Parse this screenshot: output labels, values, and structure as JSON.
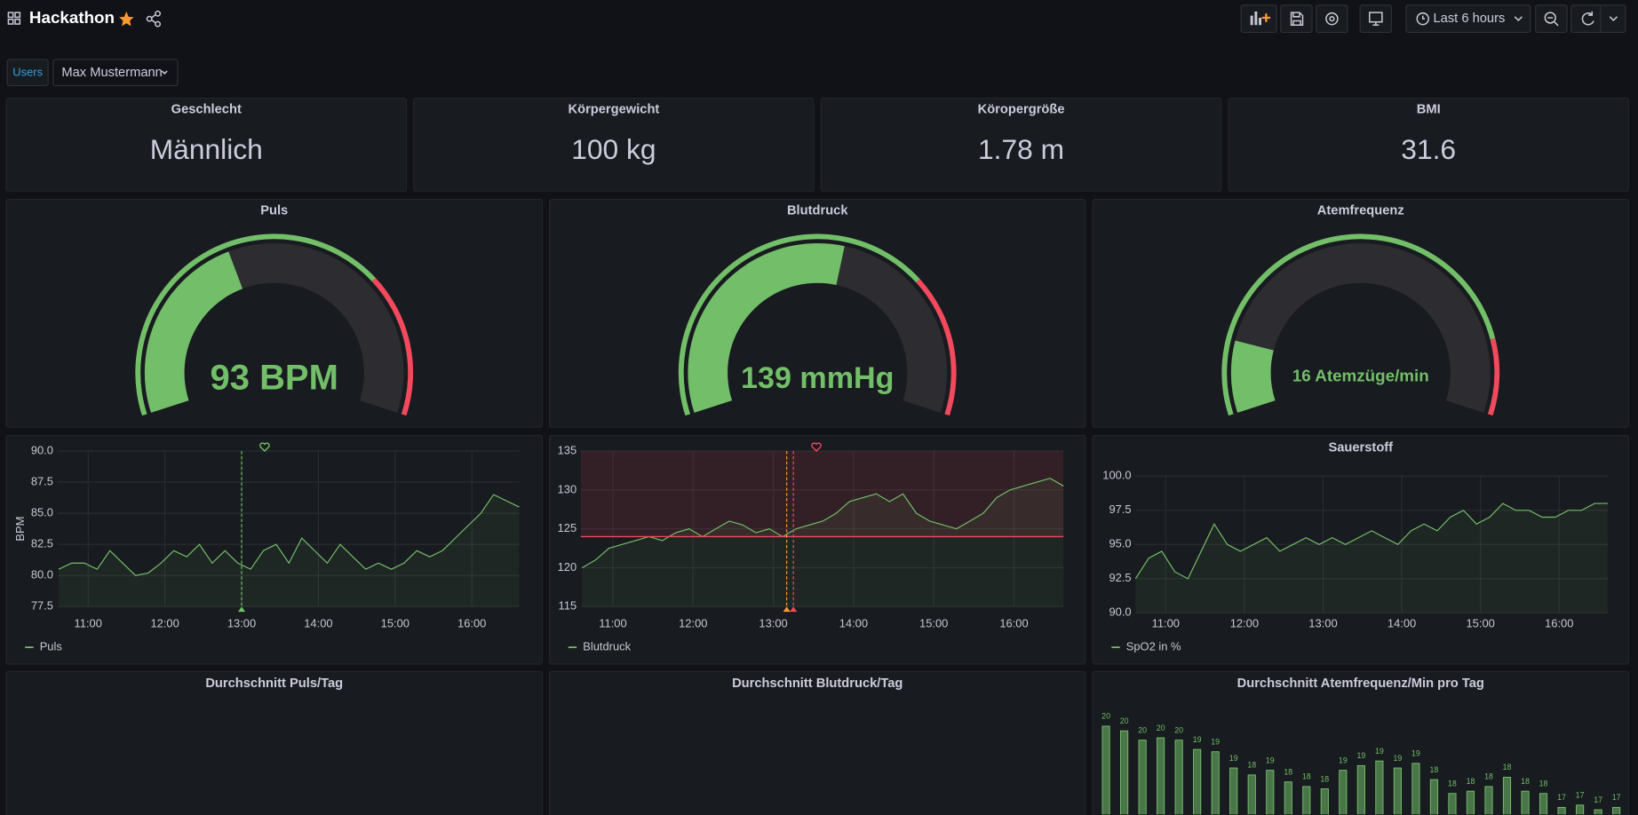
{
  "header": {
    "title": "Hackathon",
    "time_range": "Last 6 hours"
  },
  "variable": {
    "label": "Users",
    "value": "Max Mustermann"
  },
  "stats": [
    {
      "title": "Geschlecht",
      "value": "Männlich"
    },
    {
      "title": "Körpergewicht",
      "value": "100 kg"
    },
    {
      "title": "Köropergröße",
      "value": "1.78 m"
    },
    {
      "title": "BMI",
      "value": "31.6"
    }
  ],
  "gauges": [
    {
      "type": "gauge",
      "title": "Puls",
      "value": 93,
      "value_label": "93 BPM",
      "min": 0,
      "max": 230,
      "threshold": 165,
      "color": "#73bf69",
      "threshold_color": "#f2495c"
    },
    {
      "type": "gauge",
      "title": "Blutdruck",
      "value": 139,
      "value_label": "139 mmHg",
      "min": 0,
      "max": 250,
      "threshold": 180,
      "color": "#73bf69",
      "threshold_color": "#f2495c"
    },
    {
      "type": "gauge",
      "title": "Atemfrequenz",
      "value": 16,
      "value_label": "16 Atemzüge/min",
      "min": 10,
      "max": 50,
      "threshold": 44,
      "color": "#73bf69",
      "threshold_color": "#f2495c"
    }
  ],
  "timeseries": [
    {
      "type": "line",
      "ylabel": "BPM",
      "x": [
        "10:37",
        "10:47",
        "10:57",
        "11:07",
        "11:17",
        "11:27",
        "11:37",
        "11:47",
        "11:57",
        "12:07",
        "12:17",
        "12:27",
        "12:37",
        "12:47",
        "12:57",
        "13:07",
        "13:17",
        "13:27",
        "13:37",
        "13:47",
        "13:57",
        "14:07",
        "14:17",
        "14:27",
        "14:37",
        "14:47",
        "14:57",
        "15:07",
        "15:17",
        "15:27",
        "15:37",
        "15:47",
        "15:57",
        "16:07",
        "16:17",
        "16:27",
        "16:37"
      ],
      "xlim": [
        "10:36",
        "16:37"
      ],
      "xticks": [
        "11:00",
        "12:00",
        "13:00",
        "14:00",
        "15:00",
        "16:00"
      ],
      "ylim": [
        77.5,
        90
      ],
      "yticks": [
        {
          "value": 77.5,
          "label": "77.5"
        },
        {
          "value": 80,
          "label": "80.0"
        },
        {
          "value": 82.5,
          "label": "82.5"
        },
        {
          "value": 85,
          "label": "85.0"
        },
        {
          "value": 87.5,
          "label": "87.5"
        },
        {
          "value": 90,
          "label": "90.0"
        }
      ],
      "annotations": [
        {
          "time": "13:00",
          "color": "#73bf69"
        }
      ],
      "series": [
        {
          "name": "Puls",
          "color": "#73bf69",
          "values": [
            80.5,
            81,
            81,
            80.5,
            82,
            81,
            80,
            80.2,
            81,
            82,
            81.5,
            82.5,
            81,
            82,
            81,
            80.5,
            82,
            82.5,
            81,
            83,
            82,
            81,
            82.5,
            81.5,
            80.5,
            81,
            80.5,
            81,
            82,
            81.5,
            82,
            83,
            84,
            85,
            86.5,
            86,
            85.5
          ]
        }
      ]
    },
    {
      "type": "line",
      "x": [
        "10:37",
        "10:47",
        "10:57",
        "11:07",
        "11:17",
        "11:27",
        "11:37",
        "11:47",
        "11:57",
        "12:07",
        "12:17",
        "12:27",
        "12:37",
        "12:47",
        "12:57",
        "13:07",
        "13:17",
        "13:27",
        "13:37",
        "13:47",
        "13:57",
        "14:07",
        "14:17",
        "14:27",
        "14:37",
        "14:47",
        "14:57",
        "15:07",
        "15:17",
        "15:27",
        "15:37",
        "15:47",
        "15:57",
        "16:07",
        "16:17",
        "16:27",
        "16:37"
      ],
      "xlim": [
        "10:36",
        "16:37"
      ],
      "xticks": [
        "11:00",
        "12:00",
        "13:00",
        "14:00",
        "15:00",
        "16:00"
      ],
      "ylim": [
        115,
        135
      ],
      "yticks": [
        115,
        120,
        125,
        130,
        135
      ],
      "threshold": 124,
      "threshold_color": "#f2495c",
      "annotations": [
        {
          "time": "13:10",
          "color": "#ff9830"
        },
        {
          "time": "13:15",
          "color": "#f2495c"
        }
      ],
      "series": [
        {
          "name": "Blutdruck",
          "color": "#73bf69",
          "values": [
            120,
            121,
            122.5,
            123,
            123.5,
            124,
            123.5,
            124.5,
            125,
            124,
            125,
            126,
            125.5,
            124.5,
            125,
            124,
            125,
            125.5,
            126,
            127,
            128.5,
            129,
            129.5,
            128.5,
            129.5,
            127,
            126,
            125.5,
            125,
            126,
            127,
            129,
            130,
            130.5,
            131,
            131.5,
            130.5
          ]
        }
      ]
    },
    {
      "type": "line",
      "title": "Sauerstoff",
      "x": [
        "10:37",
        "10:47",
        "10:57",
        "11:07",
        "11:17",
        "11:27",
        "11:37",
        "11:47",
        "11:57",
        "12:07",
        "12:17",
        "12:27",
        "12:37",
        "12:47",
        "12:57",
        "13:07",
        "13:17",
        "13:27",
        "13:37",
        "13:47",
        "13:57",
        "14:07",
        "14:17",
        "14:27",
        "14:37",
        "14:47",
        "14:57",
        "15:07",
        "15:17",
        "15:27",
        "15:37",
        "15:47",
        "15:57",
        "16:07",
        "16:17",
        "16:27",
        "16:37"
      ],
      "xlim": [
        "10:37",
        "16:37"
      ],
      "xticks": [
        "11:00",
        "12:00",
        "13:00",
        "14:00",
        "15:00",
        "16:00"
      ],
      "ylim": [
        90,
        100
      ],
      "yticks": [
        {
          "value": 90,
          "label": "90.0"
        },
        {
          "value": 92.5,
          "label": "92.5"
        },
        {
          "value": 95,
          "label": "95.0"
        },
        {
          "value": 97.5,
          "label": "97.5"
        },
        {
          "value": 100,
          "label": "100.0"
        }
      ],
      "series": [
        {
          "name": "SpO2 in %",
          "color": "#73bf69",
          "values": [
            92.5,
            94,
            94.5,
            93,
            92.5,
            94.5,
            96.5,
            95,
            94.5,
            95,
            95.5,
            94.5,
            95,
            95.5,
            95,
            95.5,
            95,
            95.5,
            96,
            95.5,
            95,
            96,
            96.5,
            96,
            97,
            97.5,
            96.5,
            97,
            98,
            97.5,
            97.5,
            97,
            97,
            97.5,
            97.5,
            98,
            98
          ]
        }
      ]
    }
  ],
  "bottom_panels": [
    {
      "title": "Durchschnitt Puls/Tag"
    },
    {
      "title": "Durchschnitt Blutdruck/Tag"
    },
    {
      "type": "bar",
      "title": "Durchschnitt Atemfrequenz/Min pro Tag",
      "color": "#73bf69",
      "ylim": [
        15.7,
        21.1
      ],
      "values": [
        20.4,
        20.2,
        19.8,
        19.9,
        19.8,
        19.4,
        19.3,
        18.6,
        18.3,
        18.5,
        18.0,
        17.8,
        17.7,
        18.5,
        18.7,
        18.9,
        18.6,
        18.8,
        18.1,
        17.5,
        17.6,
        17.8,
        18.2,
        17.6,
        17.5,
        16.9,
        17.0,
        16.8,
        16.9
      ],
      "value_labels": [
        "20",
        "20",
        "20",
        "20",
        "20",
        "19",
        "19",
        "19",
        "18",
        "19",
        "18",
        "18",
        "18",
        "19",
        "19",
        "19",
        "19",
        "19",
        "18",
        "18",
        "18",
        "18",
        "18",
        "18",
        "18",
        "17",
        "17",
        "17",
        "17"
      ]
    }
  ]
}
